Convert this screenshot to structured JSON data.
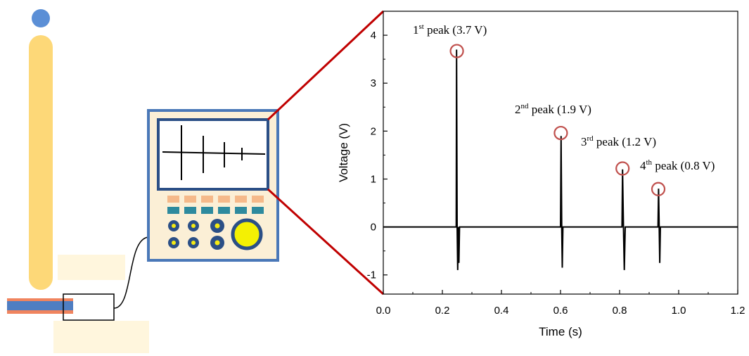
{
  "colors": {
    "ball": "#5b8fd6",
    "rod": "#fdd878",
    "rod_glow": "#fff6dd",
    "device_frame": "#4a78b8",
    "device_fill": "#fbefd6",
    "key_top": "#f5b98a",
    "key_bottom": "#2e8a9e",
    "knob_ring": "#2b4f86",
    "knob_center": "#f4ea14",
    "big_knob": "#f4f003",
    "sensor_blue": "#4f7ec2",
    "sensor_red": "#f0845e",
    "zoom_line": "#c00000",
    "peak_circle": "#c0504d"
  },
  "chart_data": {
    "type": "line",
    "xlabel": "Time (s)",
    "ylabel": "Voltage (V)",
    "xlim": [
      0.0,
      1.2
    ],
    "ylim": [
      -1.4,
      4.5
    ],
    "xticks": [
      "0.0",
      "0.2",
      "0.4",
      "0.6",
      "0.8",
      "1.0",
      "1.2"
    ],
    "xtick_values": [
      0.0,
      0.2,
      0.4,
      0.6,
      0.8,
      1.0,
      1.2
    ],
    "yticks": [
      "-1",
      "0",
      "1",
      "2",
      "3",
      "4"
    ],
    "ytick_values": [
      -1,
      0,
      1,
      2,
      3,
      4
    ],
    "grid": false,
    "series": [
      {
        "x": [
          0.0,
          0.247,
          0.248,
          0.25,
          0.252,
          0.254,
          0.256,
          0.258,
          0.6,
          0.602,
          0.604,
          0.606,
          0.608,
          0.808,
          0.81,
          0.813,
          0.816,
          0.819,
          0.93,
          0.932,
          0.934,
          0.936,
          0.938,
          1.2
        ],
        "y": [
          0.0,
          0.0,
          3.7,
          0.0,
          -0.9,
          0.0,
          -0.75,
          0.0,
          0.0,
          1.9,
          0.0,
          -0.85,
          0.0,
          0.0,
          1.2,
          0.0,
          -0.9,
          0.0,
          0.0,
          0.8,
          0.0,
          -0.75,
          0.0,
          0.0
        ]
      }
    ],
    "annotations": [
      {
        "ordinal": "1",
        "suffix": "st",
        "text": " peak (3.7 V)",
        "x": 0.249,
        "y": 3.67
      },
      {
        "ordinal": "2",
        "suffix": "nd",
        "text": " peak (1.9 V)",
        "x": 0.601,
        "y": 1.96
      },
      {
        "ordinal": "3",
        "suffix": "rd",
        "text": " peak (1.2 V)",
        "x": 0.81,
        "y": 1.22
      },
      {
        "ordinal": "4",
        "suffix": "th",
        "text": " peak (0.8 V)",
        "x": 0.931,
        "y": 0.79
      }
    ]
  }
}
